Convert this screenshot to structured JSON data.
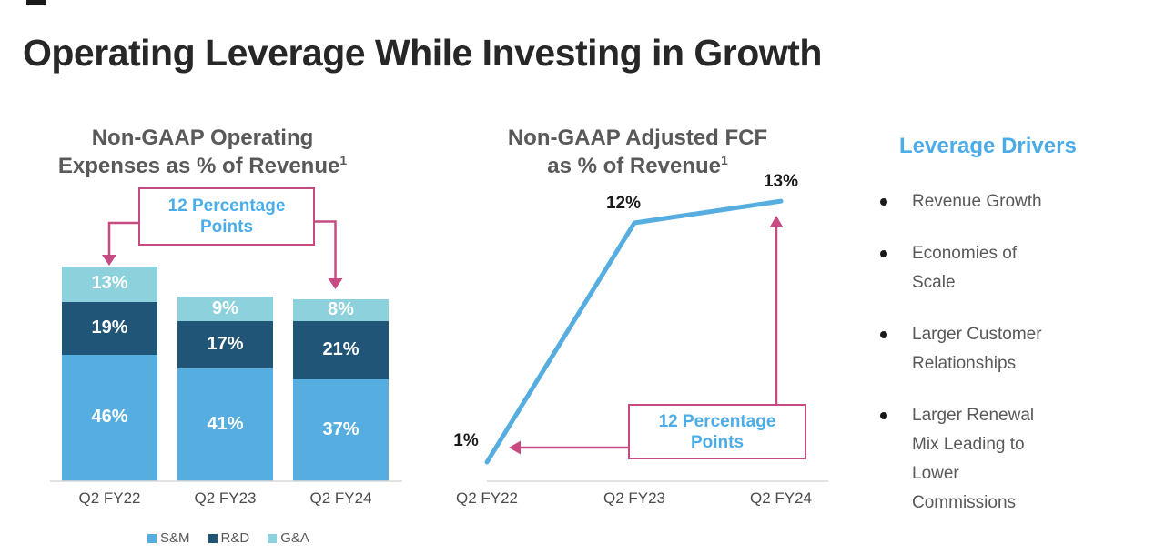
{
  "slide": {
    "title": "Operating Leverage While Investing in Growth"
  },
  "left_chart": {
    "title_line1": "Non-GAAP Operating",
    "title_line2": "Expenses as % of Revenue",
    "title_superscript": "1",
    "annotation": {
      "line1": "12 Percentage",
      "line2": "Points"
    }
  },
  "middle_chart": {
    "title_line1": "Non-GAAP Adjusted FCF",
    "title_line2": "as % of Revenue",
    "title_superscript": "1",
    "annotation": {
      "line1": "12 Percentage",
      "line2": "Points"
    }
  },
  "drivers": {
    "heading": "Leverage Drivers",
    "items": [
      "Revenue Growth",
      "Economies of Scale",
      "Larger Customer Relationships",
      "Larger Renewal Mix Leading to Lower Commissions"
    ]
  },
  "colors": {
    "sm_blue": "#55ADE0",
    "rd_navy": "#215577",
    "ga_cyan": "#8CD1DC",
    "annotation_pink": "#C74B83",
    "accent_text_blue": "#4BACE8",
    "title_gray": "#595959",
    "axis_gray": "#D9D9D9"
  },
  "chart_data": [
    {
      "type": "bar",
      "stacked": true,
      "title": "Non-GAAP Operating Expenses as % of Revenue¹",
      "categories": [
        "Q2 FY22",
        "Q2 FY23",
        "Q2 FY24"
      ],
      "series": [
        {
          "name": "S&M",
          "color": "#55ADE0",
          "values": [
            46,
            41,
            37
          ]
        },
        {
          "name": "R&D",
          "color": "#215577",
          "values": [
            19,
            17,
            21
          ]
        },
        {
          "name": "G&A",
          "color": "#8CD1DC",
          "values": [
            13,
            9,
            8
          ]
        }
      ],
      "value_label_format": "{v}%",
      "ylim": [
        0,
        80
      ],
      "grid": false,
      "legend_position": "bottom",
      "annotation": "12 Percentage Points"
    },
    {
      "type": "line",
      "title": "Non-GAAP Adjusted FCF as % of Revenue¹",
      "categories": [
        "Q2 FY22",
        "Q2 FY23",
        "Q2 FY24"
      ],
      "series": [
        {
          "name": "Adjusted FCF as % of Revenue",
          "color": "#55ADE0",
          "values": [
            1,
            12,
            13
          ]
        }
      ],
      "data_labels": [
        "1%",
        "12%",
        "13%"
      ],
      "ylim": [
        0,
        14
      ],
      "grid": false,
      "legend_position": "none",
      "annotation": "12 Percentage Points"
    }
  ]
}
